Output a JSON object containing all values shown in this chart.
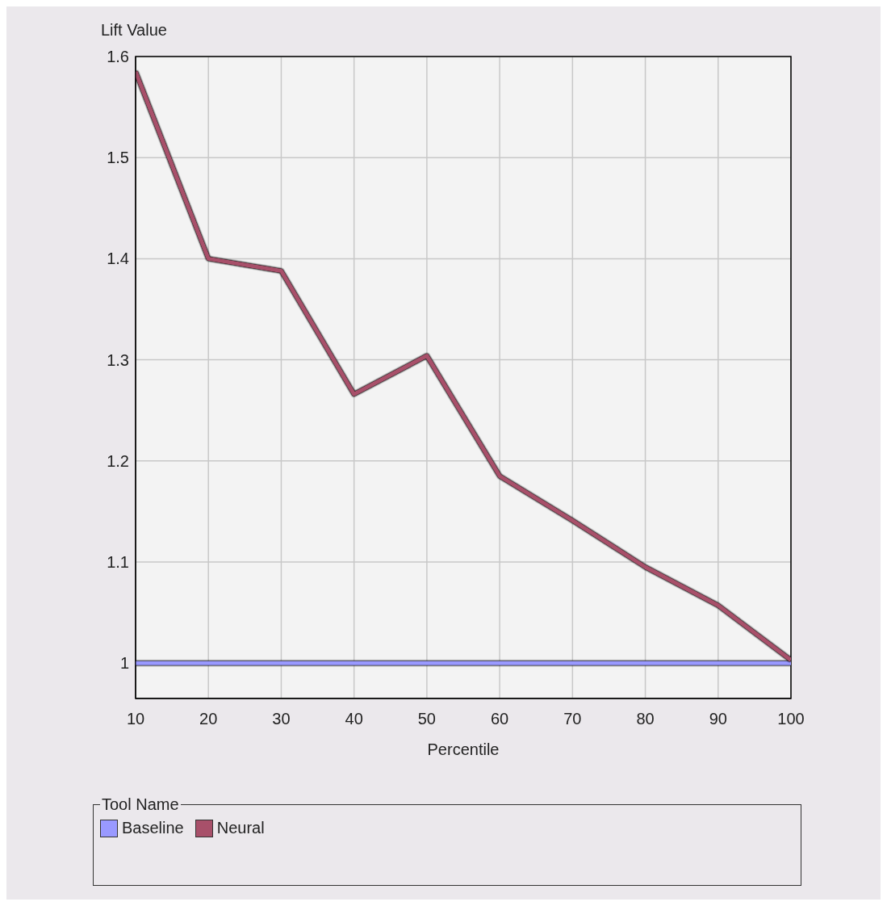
{
  "chart_data": {
    "type": "line",
    "xlabel": "Percentile",
    "ylabel": "Lift Value",
    "legend_title": "Tool Name",
    "x": [
      10,
      20,
      30,
      40,
      50,
      60,
      70,
      80,
      90,
      100
    ],
    "series": [
      {
        "name": "Baseline",
        "color": "#9999ff",
        "values": [
          1,
          1,
          1,
          1,
          1,
          1,
          1,
          1,
          1,
          1
        ]
      },
      {
        "name": "Neural",
        "color": "#a8506a",
        "values": [
          1.585,
          1.4,
          1.388,
          1.266,
          1.304,
          1.185,
          1.141,
          1.095,
          1.057,
          1.003
        ]
      }
    ],
    "xlim": [
      10,
      100
    ],
    "xticks": [
      10,
      20,
      30,
      40,
      50,
      60,
      70,
      80,
      90,
      100
    ],
    "ylim": [
      0.965,
      1.6
    ],
    "yticks": [
      1,
      1.1,
      1.2,
      1.3,
      1.4,
      1.5,
      1.6
    ],
    "grid": true,
    "legend": "bottom",
    "marker": "none"
  }
}
